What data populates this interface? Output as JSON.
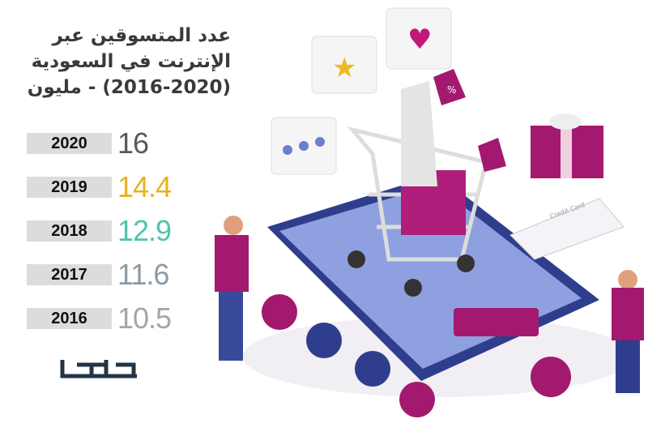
{
  "title": {
    "lines": [
      "عدد المتسوقين عبر",
      "الإنترنت في السعودية",
      "(2016-2020) - مليون"
    ]
  },
  "chart_data": {
    "type": "table",
    "title": "عدد المتسوقين عبر الإنترنت في السعودية (2016-2020) - مليون",
    "categories": [
      "2020",
      "2019",
      "2018",
      "2017",
      "2016"
    ],
    "values": [
      16,
      14.4,
      12.9,
      11.6,
      10.5
    ],
    "labels": [
      "16",
      "14.4",
      "12.9",
      "11.6",
      "10.5"
    ],
    "colors": [
      "#555a5e",
      "#e8b21a",
      "#4fc3b0",
      "#8a9aa6",
      "#a3a6a8"
    ]
  },
  "logo": {
    "text": "عكاظ",
    "color": "#233447"
  },
  "illustration": {
    "card_label": "Credit Card",
    "discount_symbol": "%"
  }
}
